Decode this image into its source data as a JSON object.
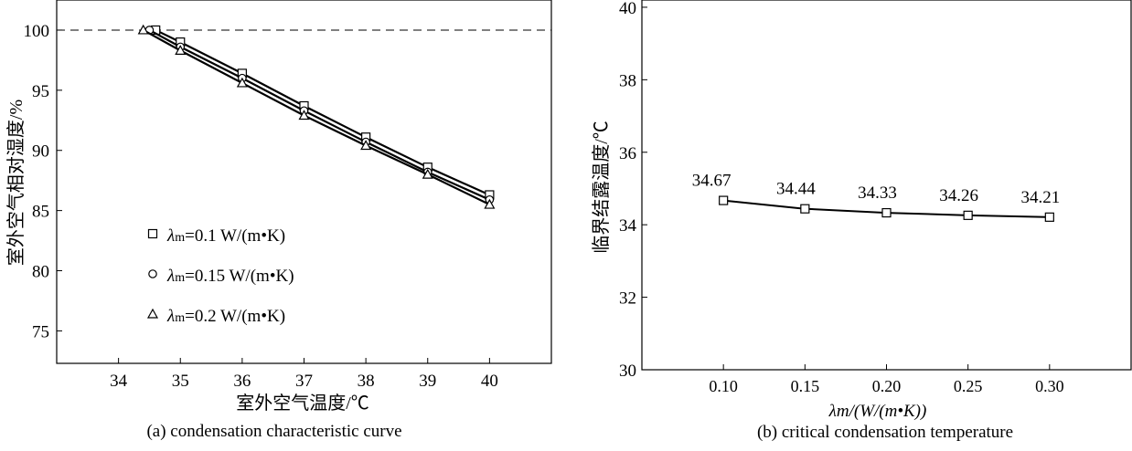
{
  "chart_data": [
    {
      "type": "line",
      "title": "(a) condensation characteristic curve",
      "xlabel": "室外空气温度/℃",
      "ylabel": "室外空气相对湿度/%",
      "xlim": [
        33,
        41
      ],
      "ylim": [
        72.3,
        102.5
      ],
      "xticks": [
        34,
        35,
        36,
        37,
        38,
        39,
        40
      ],
      "yticks": [
        75,
        80,
        85,
        90,
        95,
        100
      ],
      "reference_line": {
        "y": 100,
        "style": "dashed"
      },
      "legend_position": "lower-left",
      "series": [
        {
          "name": "λm=0.1 W/(m·K)",
          "legend_label": "=0.1 W/(m•K)",
          "marker": "square",
          "x": [
            34.6,
            35,
            36,
            37,
            38,
            39,
            40
          ],
          "y": [
            100,
            99.0,
            96.4,
            93.7,
            91.1,
            88.6,
            86.3
          ]
        },
        {
          "name": "λm=0.15 W/(m·K)",
          "legend_label": "=0.15 W/(m•K)",
          "marker": "circle",
          "x": [
            34.5,
            35,
            36,
            37,
            38,
            39,
            40
          ],
          "y": [
            100,
            98.6,
            96.0,
            93.3,
            90.7,
            88.2,
            85.9
          ]
        },
        {
          "name": "λm=0.2 W/(m·K)",
          "legend_label": "=0.2 W/(m•K)",
          "marker": "triangle",
          "x": [
            34.4,
            35,
            36,
            37,
            38,
            39,
            40
          ],
          "y": [
            100,
            98.3,
            95.6,
            92.9,
            90.4,
            88.0,
            85.5
          ]
        }
      ]
    },
    {
      "type": "line",
      "title": "(b) critical condensation temperature",
      "xlabel": "λm/(W/(m•K))",
      "ylabel": "临界结露温度/℃",
      "xlim": [
        0.05,
        0.35
      ],
      "ylim": [
        30,
        40.2
      ],
      "xticks": [
        "0.10",
        "0.15",
        "0.20",
        "0.25",
        "0.30"
      ],
      "yticks": [
        30,
        32,
        34,
        36,
        38,
        40
      ],
      "series": [
        {
          "name": "critical temperature",
          "marker": "square",
          "x": [
            0.1,
            0.15,
            0.2,
            0.25,
            0.3
          ],
          "y": [
            34.67,
            34.44,
            34.33,
            34.26,
            34.21
          ],
          "labels": [
            "34.67",
            "34.44",
            "34.33",
            "34.26",
            "34.21"
          ]
        }
      ]
    }
  ]
}
